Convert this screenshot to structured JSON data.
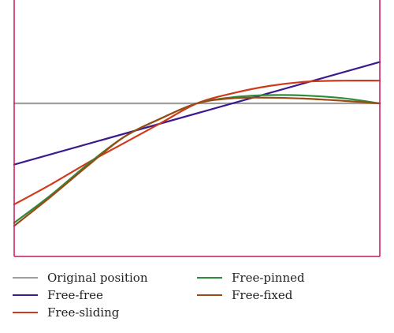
{
  "chart_data": {
    "type": "line",
    "title": "",
    "xlabel": "",
    "ylabel": "",
    "xlim": [
      0,
      1
    ],
    "ylim": [
      -1,
      1
    ],
    "grid": false,
    "legend_placement": "bottom",
    "frame_color": "#c2185b",
    "series": [
      {
        "name": "Original position",
        "color": "#9e9e9e",
        "x": [
          0,
          1
        ],
        "y": [
          0,
          0
        ]
      },
      {
        "name": "Free-free",
        "color": "#3b1a8e",
        "x": [
          0,
          1
        ],
        "y": [
          -0.4,
          0.4
        ]
      },
      {
        "name": "Free-sliding",
        "color": "#d03a1a",
        "x": [
          0,
          0.1,
          0.2,
          0.3,
          0.4,
          0.5,
          0.6,
          0.7,
          0.8,
          0.9,
          1
        ],
        "y": [
          -0.66,
          -0.53,
          -0.39,
          -0.26,
          -0.13,
          0,
          0.1,
          0.17,
          0.21,
          0.22,
          0.22
        ]
      },
      {
        "name": "Free-pinned",
        "color": "#2e8b3a",
        "x": [
          0,
          0.1,
          0.2,
          0.3,
          0.4,
          0.5,
          0.6,
          0.7,
          0.8,
          0.9,
          1
        ],
        "y": [
          -0.78,
          -0.6,
          -0.4,
          -0.22,
          -0.1,
          0,
          0.06,
          0.08,
          0.075,
          0.05,
          0
        ]
      },
      {
        "name": "Free-fixed",
        "color": "#9a4a12",
        "x": [
          0,
          0.1,
          0.2,
          0.3,
          0.4,
          0.5,
          0.6,
          0.7,
          0.8,
          0.9,
          1
        ],
        "y": [
          -0.8,
          -0.61,
          -0.41,
          -0.22,
          -0.1,
          0,
          0.05,
          0.055,
          0.045,
          0.025,
          0
        ]
      }
    ]
  },
  "legend": {
    "items": [
      {
        "label": "Original position",
        "color": "#9e9e9e"
      },
      {
        "label": "Free-free",
        "color": "#3b1a8e"
      },
      {
        "label": "Free-sliding",
        "color": "#d03a1a"
      },
      {
        "label": "Free-pinned",
        "color": "#2e8b3a"
      },
      {
        "label": "Free-fixed",
        "color": "#9a4a12"
      }
    ]
  }
}
